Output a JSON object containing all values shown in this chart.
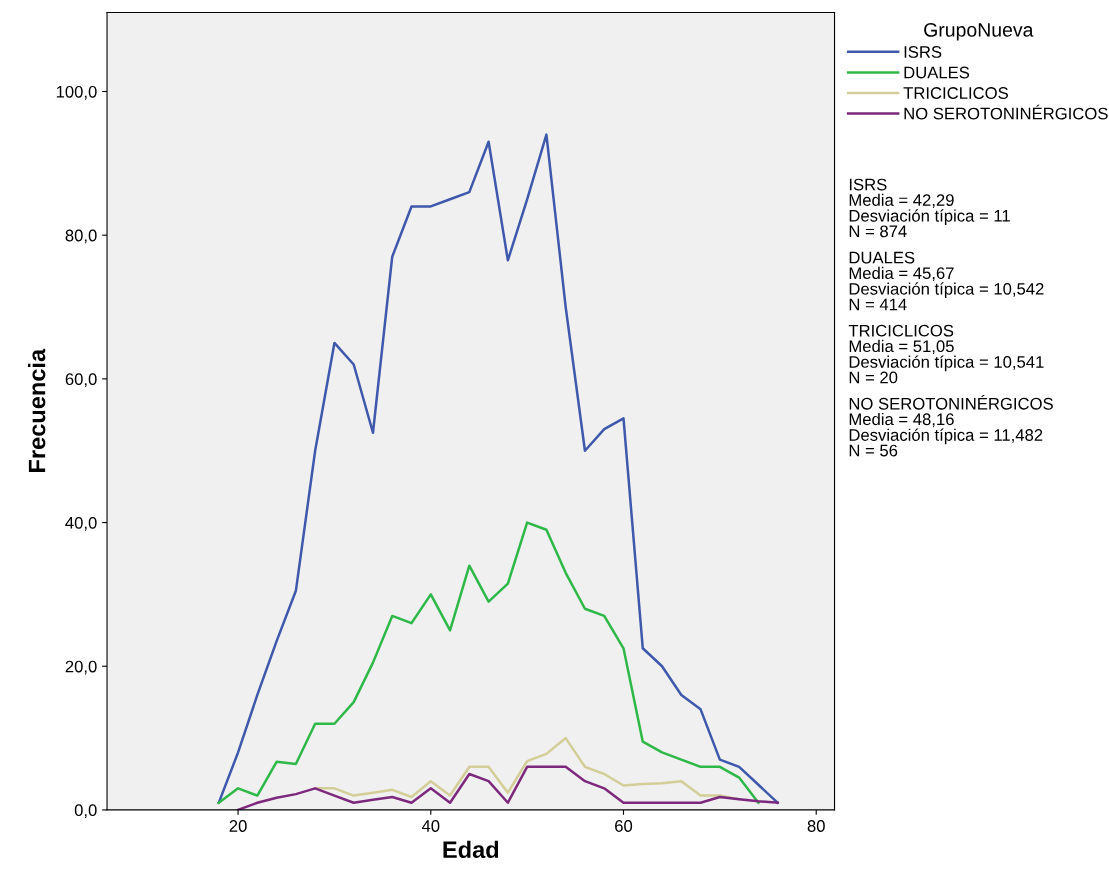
{
  "chart_data": {
    "type": "line",
    "xlabel": "Edad",
    "ylabel": "Frecuencia",
    "legend_title": "GrupoNueva",
    "xlim": [
      6.4,
      81.9
    ],
    "ylim": [
      0,
      111
    ],
    "xticks": [
      20,
      40,
      60,
      80
    ],
    "yticks": [
      {
        "value": 0,
        "label": "0,0"
      },
      {
        "value": 20,
        "label": "20,0"
      },
      {
        "value": 40,
        "label": "40,0"
      },
      {
        "value": 60,
        "label": "60,0"
      },
      {
        "value": 80,
        "label": "80,0"
      },
      {
        "value": 100,
        "label": "100,0"
      }
    ],
    "grid": false,
    "legend": "right",
    "marker": "none",
    "line_style": "solid",
    "series": [
      {
        "name": "ISRS",
        "color": "#3e58ac",
        "x": [
          18,
          20,
          22,
          24,
          26,
          28,
          30,
          32,
          34,
          36,
          38,
          40,
          42,
          44,
          46,
          48,
          50,
          52,
          54,
          56,
          58,
          60,
          62,
          64,
          66,
          68,
          70,
          72,
          74,
          76
        ],
        "values": [
          1,
          8,
          16,
          23.5,
          30.5,
          50,
          65,
          62,
          52.5,
          77,
          84,
          84,
          85,
          86,
          93,
          76.5,
          85,
          94,
          70,
          50,
          53,
          54.5,
          22.5,
          20,
          16,
          14,
          7,
          6,
          3.5,
          1
        ]
      },
      {
        "name": "DUALES",
        "color": "#2eb848",
        "x": [
          18,
          20,
          22,
          24,
          26,
          28,
          30,
          32,
          34,
          36,
          38,
          40,
          42,
          44,
          46,
          48,
          50,
          52,
          54,
          56,
          58,
          60,
          62,
          64,
          66,
          68,
          70,
          72,
          74
        ],
        "values": [
          1,
          3,
          2,
          6.7,
          6.4,
          12,
          12,
          15,
          20.5,
          27,
          26,
          30,
          25,
          34,
          29,
          31.5,
          40,
          39,
          33,
          28,
          27,
          22.5,
          9.5,
          8,
          7,
          6,
          6,
          4.5,
          1
        ]
      },
      {
        "name": "TRICICLICOS",
        "color": "#d3ce97",
        "x": [
          28,
          30,
          32,
          34,
          36,
          38,
          40,
          42,
          44,
          46,
          48,
          50,
          52,
          54,
          56,
          58,
          60,
          62,
          64,
          66,
          68,
          70,
          72
        ],
        "values": [
          3,
          3,
          2,
          2.4,
          2.8,
          1.8,
          4,
          2,
          6,
          6,
          2.4,
          6.8,
          7.8,
          10,
          6,
          5,
          3.4,
          3.6,
          3.7,
          4,
          2,
          2,
          1.5
        ]
      },
      {
        "name": "NO SEROTONINÉRGICOS",
        "color": "#7c287d",
        "x": [
          20,
          22,
          24,
          26,
          28,
          30,
          32,
          34,
          36,
          38,
          40,
          42,
          44,
          46,
          48,
          50,
          52,
          54,
          56,
          58,
          60,
          62,
          64,
          66,
          68,
          70,
          72,
          74,
          76
        ],
        "values": [
          0,
          1,
          1.7,
          2.2,
          3,
          2,
          1,
          1.4,
          1.8,
          1,
          3,
          1,
          5,
          4,
          1,
          6,
          6,
          6,
          4,
          3,
          1,
          1,
          1,
          1,
          1,
          1.8,
          1.5,
          1.2,
          1
        ]
      }
    ],
    "annotations": [
      "ISRS\nMedia = 42,29\nDesviación típica = 11\nN = 874",
      "DUALES\nMedia = 45,67\nDesviación típica = 10,542\nN = 414",
      "TRICICLICOS\nMedia = 51,05\nDesviación típica = 10,541\nN = 20",
      "NO SEROTONINÉRGICOS\nMedia = 48,16\nDesviación típica = 11,482\nN = 56"
    ]
  }
}
